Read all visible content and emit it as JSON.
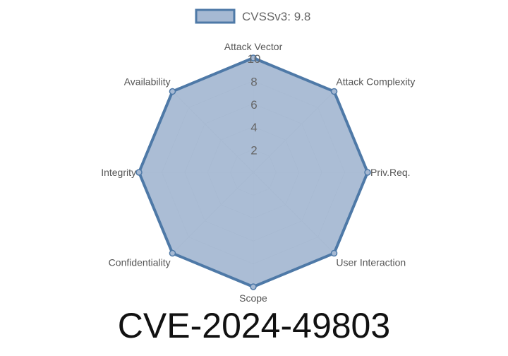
{
  "chart_data": {
    "type": "radar",
    "title": "CVE-2024-49803",
    "axes": [
      "Attack Vector",
      "Attack Complexity",
      "Priv.Req.",
      "User Interaction",
      "Scope",
      "Confidentiality",
      "Integrity",
      "Availability"
    ],
    "series": [
      {
        "name": "CVSSv3: 9.8",
        "values": [
          10,
          10,
          10,
          10,
          10,
          10,
          10,
          10
        ]
      }
    ],
    "rlim": [
      0,
      10
    ],
    "ticks": [
      "2",
      "4",
      "6",
      "8",
      "10"
    ],
    "legend": "top",
    "colors": {
      "fill": "#a6b9d3",
      "stroke": "#4e79a7",
      "grid": "#c8c8c8"
    }
  }
}
